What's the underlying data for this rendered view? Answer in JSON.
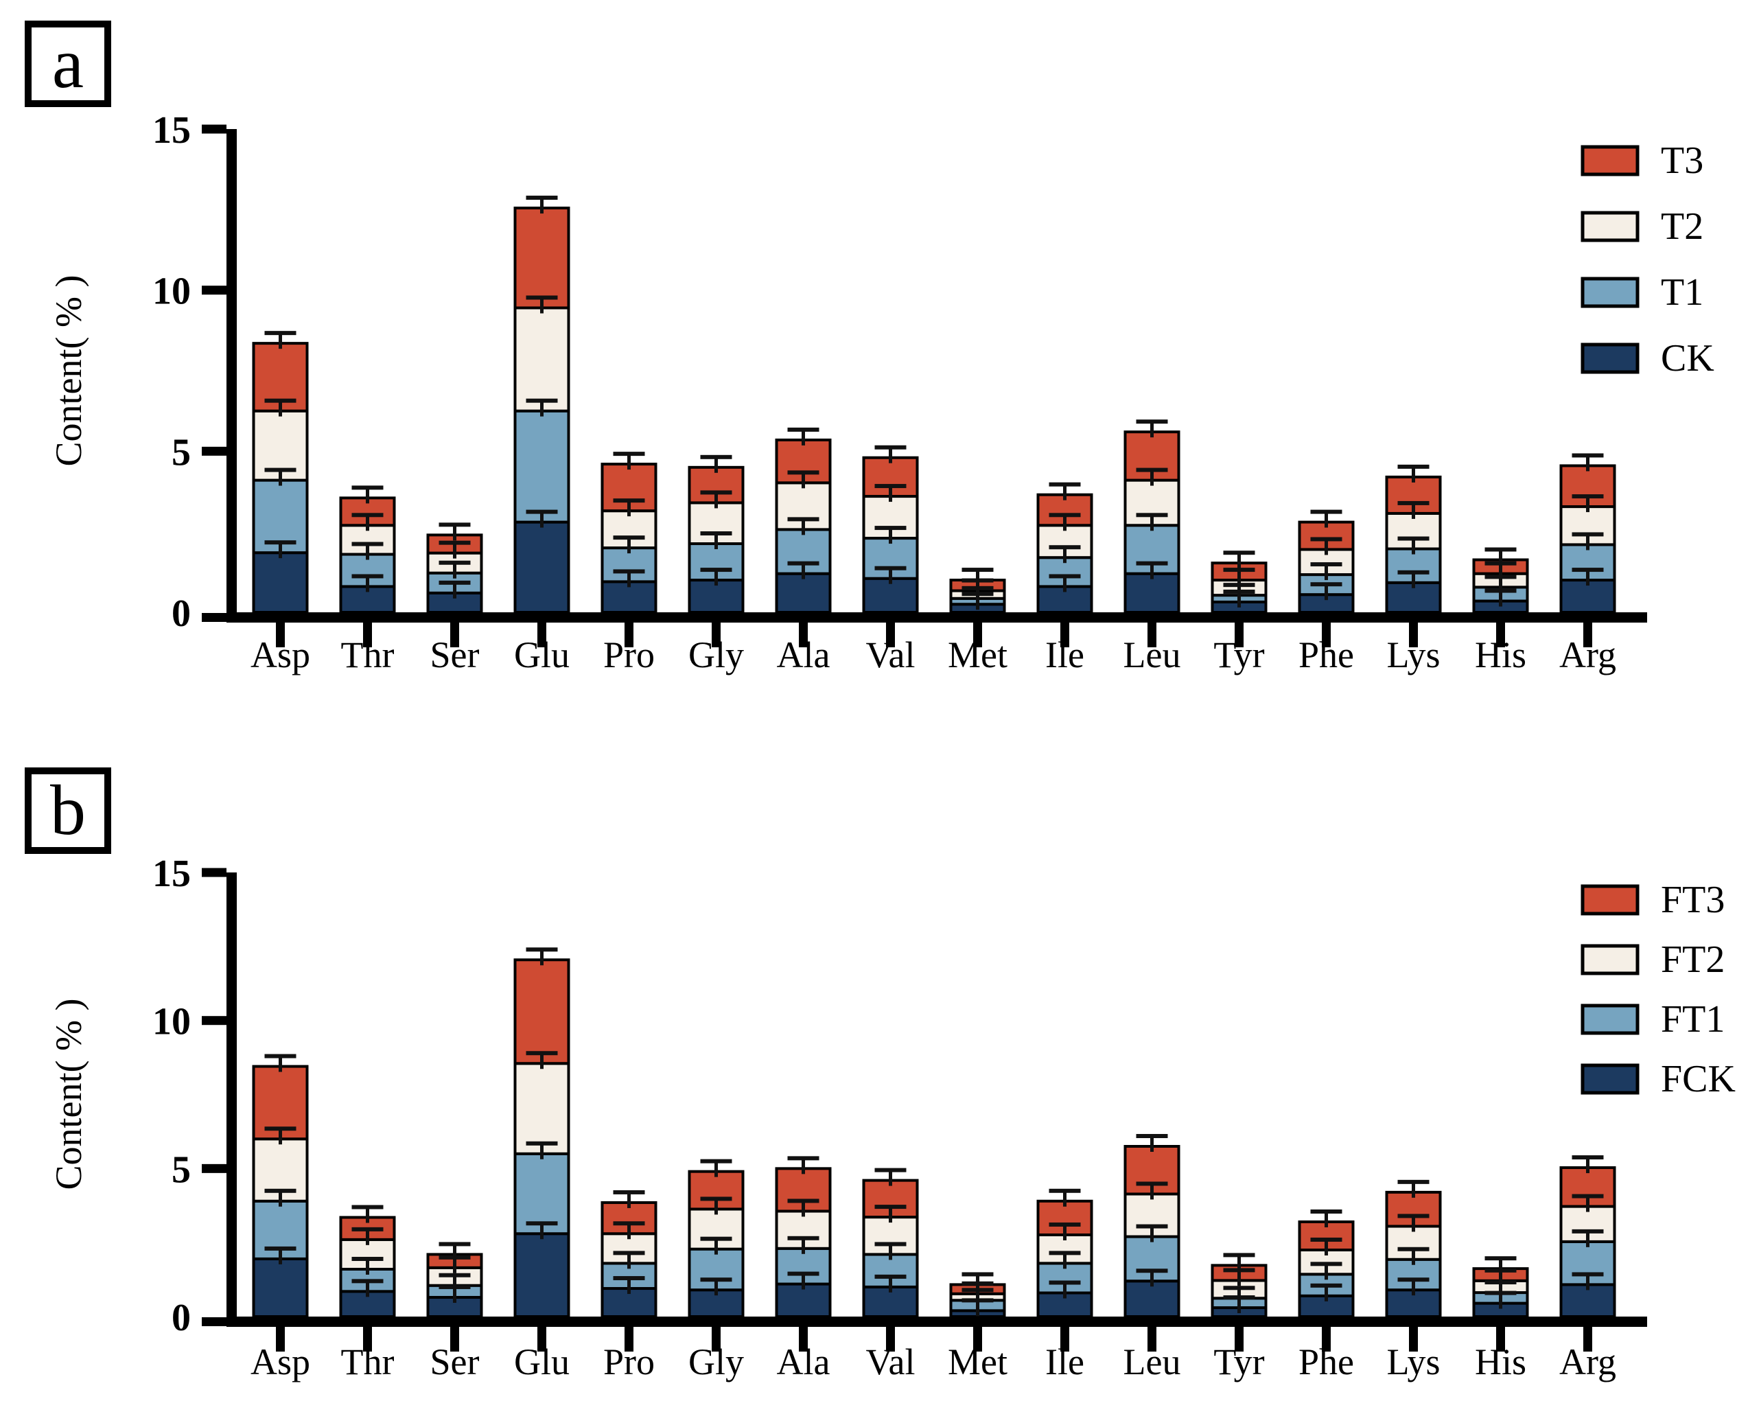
{
  "page": {
    "background": "#ffffff"
  },
  "panels": [
    {
      "label": "a"
    },
    {
      "label": "b"
    }
  ],
  "colors": {
    "bar_stroke": "#000000",
    "axis": "#000000",
    "red": "#cf4b33",
    "cream": "#f5efe6",
    "light_blue": "#76a4c0",
    "navy": "#1c3a60"
  },
  "chart_data": [
    {
      "type": "bar",
      "stacked": true,
      "panel": "a",
      "title": "",
      "xlabel": "",
      "ylabel": "Content( % )",
      "ylim": [
        0,
        15
      ],
      "yticks": [
        0,
        5,
        10,
        15
      ],
      "grid": false,
      "legend_position": "top-right",
      "legend_top_to_bottom": [
        "T3",
        "T2",
        "T1",
        "CK"
      ],
      "error_bar": 0.12,
      "categories": [
        "Asp",
        "Thr",
        "Ser",
        "Glu",
        "Pro",
        "Gly",
        "Ala",
        "Val",
        "Met",
        "Ile",
        "Leu",
        "Tyr",
        "Phe",
        "Lys",
        "His",
        "Arg"
      ],
      "series": [
        {
          "name": "CK",
          "color": "#1c3a60",
          "values": [
            1.85,
            0.8,
            0.6,
            2.8,
            0.95,
            1.0,
            1.2,
            1.05,
            0.25,
            0.8,
            1.2,
            0.32,
            0.55,
            0.92,
            0.35,
            1.0
          ]
        },
        {
          "name": "T1",
          "color": "#76a4c0",
          "values": [
            2.25,
            1.0,
            0.62,
            3.45,
            1.05,
            1.13,
            1.37,
            1.25,
            0.18,
            0.9,
            1.5,
            0.21,
            0.62,
            1.05,
            0.43,
            1.1
          ]
        },
        {
          "name": "T2",
          "color": "#f5efe6",
          "values": [
            2.15,
            0.9,
            0.62,
            3.2,
            1.15,
            1.27,
            1.45,
            1.3,
            0.24,
            1.0,
            1.4,
            0.47,
            0.78,
            1.1,
            0.42,
            1.18
          ]
        },
        {
          "name": "T3",
          "color": "#cf4b33",
          "values": [
            2.1,
            0.85,
            0.56,
            3.1,
            1.45,
            1.1,
            1.33,
            1.2,
            0.33,
            0.95,
            1.5,
            0.53,
            0.85,
            1.13,
            0.43,
            1.27
          ]
        }
      ]
    },
    {
      "type": "bar",
      "stacked": true,
      "panel": "b",
      "title": "",
      "xlabel": "",
      "ylabel": "Content( % )",
      "ylim": [
        0,
        15
      ],
      "yticks": [
        0,
        5,
        10,
        15
      ],
      "grid": false,
      "legend_position": "top-right",
      "legend_top_to_bottom": [
        "FT3",
        "FT2",
        "FT1",
        "FCK"
      ],
      "error_bar": 0.12,
      "categories": [
        "Asp",
        "Thr",
        "Ser",
        "Glu",
        "Pro",
        "Gly",
        "Ala",
        "Val",
        "Met",
        "Ile",
        "Leu",
        "Tyr",
        "Phe",
        "Lys",
        "His",
        "Arg"
      ],
      "series": [
        {
          "name": "FCK",
          "color": "#1c3a60",
          "values": [
            1.95,
            0.85,
            0.65,
            2.8,
            0.95,
            0.9,
            1.1,
            1.0,
            0.2,
            0.8,
            1.2,
            0.3,
            0.7,
            0.9,
            0.45,
            1.08
          ]
        },
        {
          "name": "FT1",
          "color": "#76a4c0",
          "values": [
            1.95,
            0.75,
            0.4,
            2.7,
            0.85,
            1.38,
            1.2,
            1.1,
            0.35,
            1.0,
            1.5,
            0.32,
            0.73,
            1.03,
            0.36,
            1.45
          ]
        },
        {
          "name": "FT2",
          "color": "#f5efe6",
          "values": [
            2.1,
            1.0,
            0.6,
            3.05,
            1.0,
            1.35,
            1.26,
            1.26,
            0.22,
            0.96,
            1.44,
            0.6,
            0.82,
            1.12,
            0.4,
            1.19
          ]
        },
        {
          "name": "FT3",
          "color": "#cf4b33",
          "values": [
            2.45,
            0.75,
            0.45,
            3.5,
            1.05,
            1.27,
            1.44,
            1.24,
            0.31,
            1.14,
            1.61,
            0.51,
            0.95,
            1.15,
            0.41,
            1.31
          ]
        }
      ]
    }
  ]
}
